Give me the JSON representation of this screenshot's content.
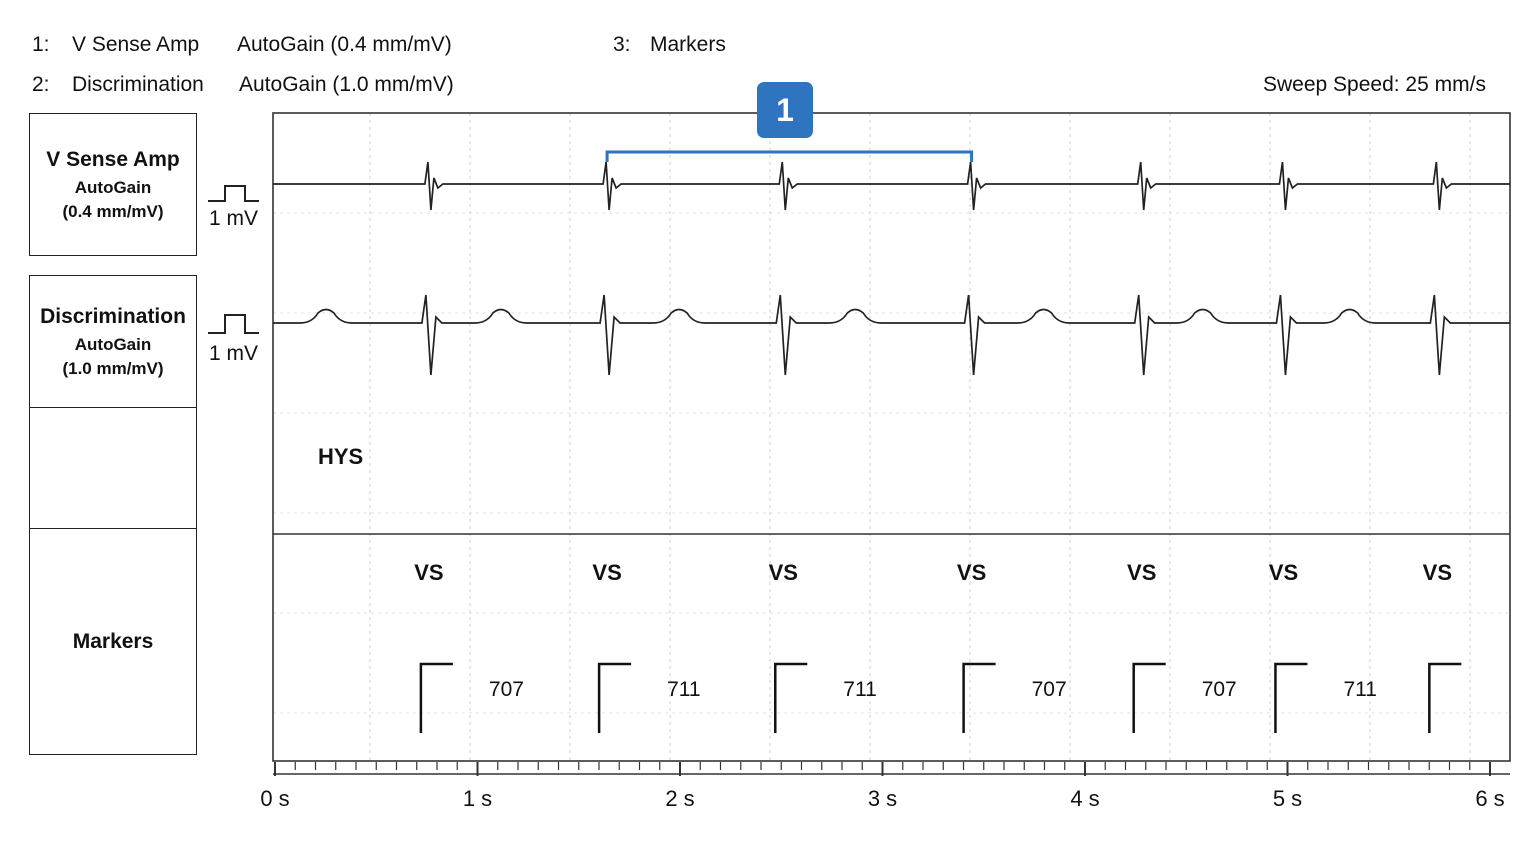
{
  "header": {
    "ch1_num": "1:",
    "ch1_name": "V Sense Amp",
    "ch1_gain": "AutoGain (0.4 mm/mV)",
    "ch2_num": "2:",
    "ch2_name": "Discrimination",
    "ch2_gain": "AutoGain (1.0 mm/mV)",
    "ch3_num": "3:",
    "ch3_name": "Markers",
    "sweep_speed": "Sweep Speed: 25 mm/s"
  },
  "channels": {
    "vsense": {
      "title": "V Sense Amp",
      "gain": "AutoGain",
      "scale": "(0.4 mm/mV)",
      "cal": "1 mV"
    },
    "disc": {
      "title": "Discrimination",
      "gain": "AutoGain",
      "scale": "(1.0 mm/mV)",
      "cal": "1 mV"
    },
    "markers": {
      "title": "Markers"
    }
  },
  "annotation": {
    "badge": "1",
    "hys_label": "HYS"
  },
  "colors": {
    "trace": "#222222",
    "highlight": "#2f74bf",
    "grid": "#cfcfcf"
  },
  "chart_data": {
    "type": "line",
    "x_unit": "s",
    "xlim": [
      0,
      6
    ],
    "x_ticks": [
      "0 s",
      "1 s",
      "2 s",
      "3 s",
      "4 s",
      "5 s",
      "6 s"
    ],
    "beats": [
      {
        "t": 0.76,
        "marker": "VS",
        "interval_ms": "707"
      },
      {
        "t": 1.64,
        "marker": "VS",
        "interval_ms": "711"
      },
      {
        "t": 2.51,
        "marker": "VS",
        "interval_ms": "711"
      },
      {
        "t": 3.44,
        "marker": "VS",
        "interval_ms": "707"
      },
      {
        "t": 4.28,
        "marker": "VS",
        "interval_ms": "707"
      },
      {
        "t": 4.98,
        "marker": "VS",
        "interval_ms": "711"
      },
      {
        "t": 5.74,
        "marker": "VS",
        "interval_ms": ""
      }
    ],
    "highlight_span": {
      "from": 1.64,
      "to": 3.44
    }
  }
}
